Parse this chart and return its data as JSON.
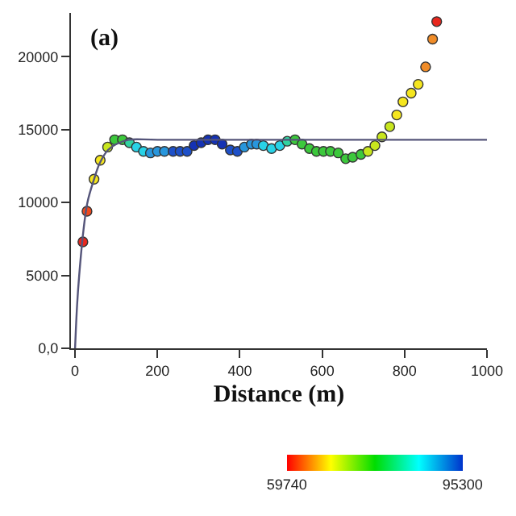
{
  "chart_data": {
    "type": "scatter",
    "annotations": [
      "(a)"
    ],
    "xlabel": "Distance (m)",
    "x": [
      19,
      29,
      46,
      61,
      79,
      96,
      115,
      132,
      149,
      166,
      183,
      200,
      217,
      238,
      255,
      272,
      289,
      306,
      323,
      340,
      357,
      377,
      394,
      411,
      428,
      441,
      457,
      477,
      497,
      515,
      534,
      551,
      569,
      586,
      603,
      620,
      639,
      657,
      674,
      694,
      711,
      728,
      745,
      764,
      781,
      796,
      816,
      833,
      851,
      868,
      878
    ],
    "series": [
      {
        "marker": "circle",
        "values": [
          7300,
          9400,
          11600,
          12900,
          13800,
          14300,
          14300,
          14100,
          13800,
          13500,
          13400,
          13500,
          13500,
          13500,
          13500,
          13500,
          13900,
          14100,
          14300,
          14300,
          14000,
          13600,
          13500,
          13800,
          14000,
          14000,
          13900,
          13700,
          13900,
          14200,
          14300,
          14000,
          13700,
          13500,
          13500,
          13500,
          13400,
          13000,
          13100,
          13300,
          13500,
          13900,
          14500,
          15200,
          16000,
          16900,
          17500,
          18100,
          19300,
          21200,
          22400
        ],
        "colors": [
          "#e8281e",
          "#f04a1e",
          "#f5e61e",
          "#f5e61e",
          "#c8e61e",
          "#3cc83c",
          "#3cc83c",
          "#32d2a0",
          "#28d2e6",
          "#28d2e6",
          "#2896dc",
          "#2896dc",
          "#2896dc",
          "#1e50c8",
          "#1e50c8",
          "#1e50c8",
          "#1432b4",
          "#1432b4",
          "#1432b4",
          "#1432b4",
          "#1432b4",
          "#1e50c8",
          "#1e50c8",
          "#2896dc",
          "#2896dc",
          "#2896dc",
          "#28d2e6",
          "#28d2e6",
          "#28d2e6",
          "#32d2a0",
          "#3cc83c",
          "#3cc83c",
          "#3cc83c",
          "#3cc83c",
          "#3cc83c",
          "#3cc83c",
          "#3cc83c",
          "#3cc83c",
          "#3cc83c",
          "#3cc83c",
          "#c8e61e",
          "#c8e61e",
          "#c8e61e",
          "#c8e61e",
          "#f5e61e",
          "#f5e61e",
          "#f5e61e",
          "#f5e61e",
          "#f08c28",
          "#f08c28",
          "#e8281e"
        ]
      },
      {
        "type": "line",
        "color": "#55557a",
        "x": [
          0,
          5,
          10,
          20,
          30,
          45,
          60,
          80,
          100,
          130,
          200,
          1000
        ],
        "values": [
          0,
          3000,
          5000,
          8000,
          10000,
          11500,
          12700,
          13600,
          14000,
          14300,
          14300,
          14300
        ]
      }
    ],
    "clim": [
      59740,
      95300
    ],
    "cticks": [
      {
        "value": 59740,
        "label": "59740"
      },
      {
        "value": 95300,
        "label": "95300"
      }
    ],
    "xlim": [
      -10,
      1000
    ],
    "xticks": [
      0,
      200,
      400,
      600,
      800,
      1000
    ],
    "ylim": [
      0,
      23000
    ],
    "yticks": [
      {
        "value": 0,
        "label": "0,0"
      },
      5000,
      10000,
      15000,
      20000
    ]
  }
}
